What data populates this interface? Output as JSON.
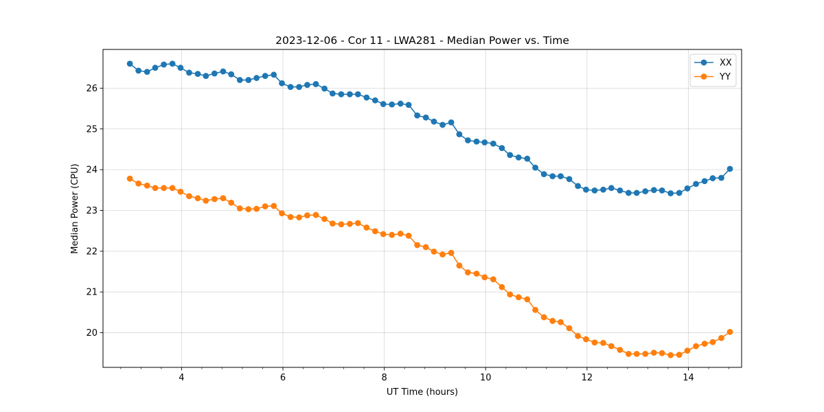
{
  "chart_data": {
    "type": "line",
    "title": "2023-12-06 - Cor 11 - LWA281 - Median Power vs. Time",
    "xlabel": "UT Time (hours)",
    "ylabel": "Median Power (CPU)",
    "xlim": [
      2.45,
      15.05
    ],
    "ylim": [
      19.15,
      26.95
    ],
    "xticks": [
      4,
      6,
      8,
      10,
      12,
      14
    ],
    "xtick_labels": [
      "4",
      "6",
      "8",
      "10",
      "12",
      "14"
    ],
    "xminor_step": 0.4,
    "yticks": [
      20,
      21,
      22,
      23,
      24,
      25,
      26
    ],
    "ytick_labels": [
      "20",
      "21",
      "22",
      "23",
      "24",
      "25",
      "26"
    ],
    "grid": true,
    "legend_position": "top-right",
    "x": [
      2.98,
      3.15,
      3.32,
      3.48,
      3.65,
      3.82,
      3.98,
      4.15,
      4.32,
      4.48,
      4.65,
      4.82,
      4.98,
      5.15,
      5.32,
      5.48,
      5.65,
      5.82,
      5.98,
      6.15,
      6.32,
      6.48,
      6.65,
      6.82,
      6.98,
      7.15,
      7.32,
      7.48,
      7.65,
      7.82,
      7.98,
      8.15,
      8.32,
      8.48,
      8.65,
      8.82,
      8.98,
      9.15,
      9.32,
      9.48,
      9.65,
      9.82,
      9.98,
      10.15,
      10.32,
      10.48,
      10.65,
      10.82,
      10.98,
      11.15,
      11.32,
      11.48,
      11.65,
      11.82,
      11.98,
      12.15,
      12.32,
      12.48,
      12.65,
      12.82,
      12.98,
      13.15,
      13.32,
      13.48,
      13.65,
      13.82,
      13.98,
      14.15,
      14.32,
      14.48,
      14.65,
      14.82
    ],
    "series": [
      {
        "name": "XX",
        "color": "#1f77b4",
        "values": [
          26.6,
          26.43,
          26.4,
          26.5,
          26.58,
          26.6,
          26.5,
          26.38,
          26.35,
          26.3,
          26.36,
          26.41,
          26.34,
          26.2,
          26.2,
          26.25,
          26.3,
          26.33,
          26.12,
          26.03,
          26.03,
          26.08,
          26.1,
          25.99,
          25.87,
          25.85,
          25.85,
          25.85,
          25.77,
          25.7,
          25.61,
          25.6,
          25.62,
          25.59,
          25.33,
          25.28,
          25.18,
          25.1,
          25.16,
          24.87,
          24.72,
          24.69,
          24.67,
          24.64,
          24.53,
          24.36,
          24.3,
          24.27,
          24.05,
          23.89,
          23.84,
          23.84,
          23.77,
          23.6,
          23.51,
          23.49,
          23.51,
          23.55,
          23.49,
          23.43,
          23.43,
          23.47,
          23.5,
          23.49,
          23.42,
          23.43,
          23.54,
          23.65,
          23.72,
          23.79,
          23.8,
          24.02
        ]
      },
      {
        "name": "YY",
        "color": "#ff7f0e",
        "values": [
          23.78,
          23.66,
          23.61,
          23.55,
          23.55,
          23.55,
          23.46,
          23.35,
          23.3,
          23.24,
          23.28,
          23.3,
          23.19,
          23.05,
          23.03,
          23.04,
          23.1,
          23.11,
          22.93,
          22.84,
          22.83,
          22.88,
          22.89,
          22.79,
          22.68,
          22.66,
          22.67,
          22.69,
          22.58,
          22.49,
          22.42,
          22.4,
          22.43,
          22.38,
          22.15,
          22.1,
          21.99,
          21.92,
          21.96,
          21.65,
          21.48,
          21.45,
          21.36,
          21.31,
          21.12,
          20.94,
          20.87,
          20.82,
          20.56,
          20.38,
          20.29,
          20.26,
          20.11,
          19.92,
          19.84,
          19.76,
          19.75,
          19.67,
          19.58,
          19.48,
          19.48,
          19.48,
          19.51,
          19.5,
          19.45,
          19.46,
          19.56,
          19.67,
          19.73,
          19.77,
          19.87,
          20.02
        ]
      }
    ]
  }
}
